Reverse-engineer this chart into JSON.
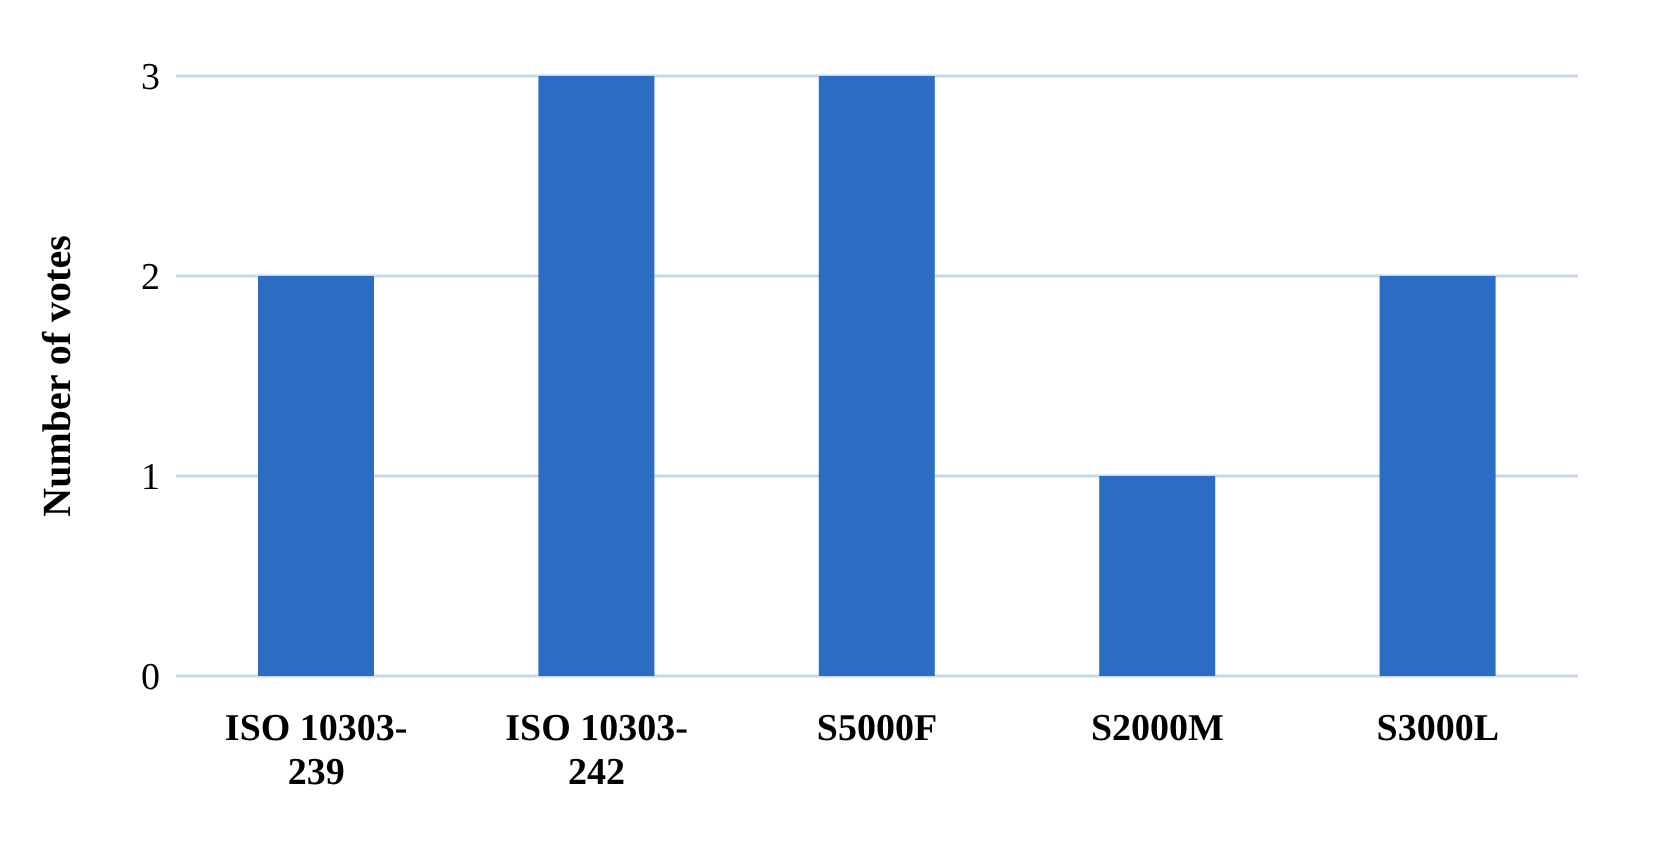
{
  "chart_data": {
    "type": "bar",
    "ylabel": "Number of votes",
    "categories": [
      "ISO 10303-239",
      "ISO 10303-242",
      "S5000F",
      "S2000M",
      "S3000L"
    ],
    "values": [
      2,
      3,
      3,
      1,
      2
    ],
    "color": "#2b6cc4",
    "ylim": [
      0,
      3
    ],
    "yticks": [
      0,
      1,
      2,
      3
    ],
    "grid": "y"
  }
}
